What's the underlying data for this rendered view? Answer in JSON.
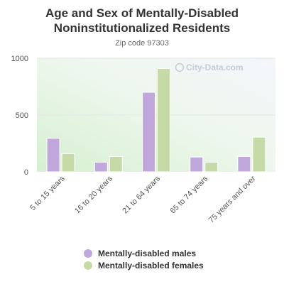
{
  "title": "Age and Sex of Mentally-Disabled\nNoninstitutionalized Residents",
  "subtitle": "Zip code 97303",
  "watermark": "City-Data.com",
  "chart_data": {
    "type": "bar",
    "categories": [
      "5 to 15 years",
      "16 to 20 years",
      "21 to 64 years",
      "65 to 74 years",
      "75 years and over"
    ],
    "series": [
      {
        "name": "Mentally-disabled males",
        "color": "#c0a8dc",
        "values": [
          295,
          85,
          700,
          130,
          135
        ]
      },
      {
        "name": "Mentally-disabled females",
        "color": "#c6daa8",
        "values": [
          160,
          135,
          910,
          85,
          305
        ]
      }
    ],
    "yticks": [
      0,
      500,
      1000
    ],
    "ylim": [
      0,
      1000
    ],
    "grid": true,
    "legend": "bottom"
  }
}
